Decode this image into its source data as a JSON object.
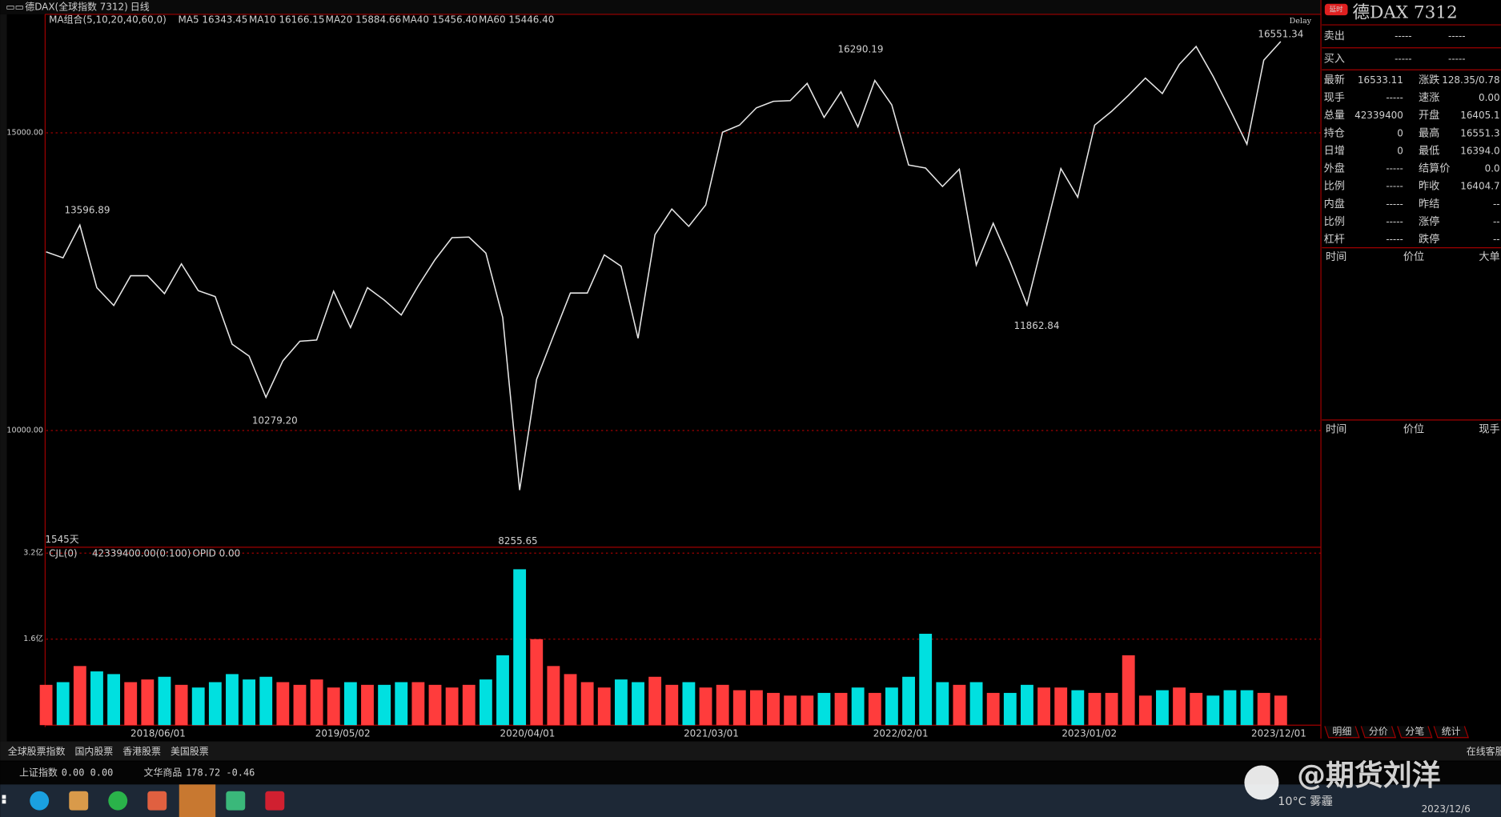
{
  "window": {
    "title": "德DAX(全球指数 7312)",
    "period": "日线"
  },
  "chart_data": {
    "type": "line",
    "ma_group": "MA组合(5,10,20,40,60,0)",
    "ma_legend": [
      {
        "text": "MA5 16343.45",
        "color": "#ffffff"
      },
      {
        "text": "MA10 16166.15",
        "color": "#ffff00"
      },
      {
        "text": "MA20 15884.66",
        "color": "#ff00ff"
      },
      {
        "text": "MA40 15456.40",
        "color": "#00ff00"
      },
      {
        "text": "MA60 15446.40",
        "color": "#808080"
      }
    ],
    "delay": "Delay",
    "days": "1545天",
    "x_labels": [
      "2018/06/01",
      "2019/05/02",
      "2020/04/01",
      "2021/03/01",
      "2022/02/01",
      "2023/01/02",
      "2023/12/01"
    ],
    "values": [
      13000,
      12900,
      13450,
      12400,
      12100,
      12600,
      12600,
      12300,
      12800,
      12350,
      12250,
      11450,
      11250,
      10560,
      11170,
      11500,
      11520,
      12340,
      11730,
      12400,
      12190,
      11940,
      12430,
      12870,
      13240,
      13250,
      12980,
      11900,
      9000,
      10860,
      11590,
      12310,
      12310,
      12950,
      12760,
      11550,
      13290,
      13720,
      13430,
      13790,
      15010,
      15130,
      15420,
      15530,
      15540,
      15830,
      15260,
      15690,
      15100,
      15880,
      15470,
      14460,
      14410,
      14100,
      14390,
      12780,
      13480,
      12830,
      12110,
      13250,
      14400,
      13920,
      15130,
      15360,
      15630,
      15920,
      15660,
      16150,
      16450,
      15950,
      15390,
      14810,
      16220,
      16533
    ],
    "color": "#e6e6e6",
    "ylim": [
      8040,
      16990
    ],
    "yticks": [
      {
        "value": 10000,
        "label": "10000.00"
      },
      {
        "value": 15000,
        "label": "15000.00"
      }
    ],
    "grid": true,
    "annotations": [
      {
        "text": "13596.89",
        "color": "#ff4040"
      },
      {
        "text": "10279.20",
        "color": "#00e0e0"
      },
      {
        "text": "8255.65",
        "color": "#00e0e0"
      },
      {
        "text": "16290.19",
        "color": "#ff4040"
      },
      {
        "text": "11862.84",
        "color": "#00e0e0"
      },
      {
        "text": "16551.34",
        "color": "#ff4040"
      }
    ],
    "volume": {
      "legend": [
        "CJL(0)",
        "42339400.00(0:100)",
        "OPID 0.00"
      ],
      "values": [
        0.75,
        0.8,
        1.1,
        1.0,
        0.95,
        0.8,
        0.85,
        0.9,
        0.75,
        0.7,
        0.8,
        0.95,
        0.85,
        0.9,
        0.8,
        0.75,
        0.85,
        0.7,
        0.8,
        0.75,
        0.75,
        0.8,
        0.8,
        0.75,
        0.7,
        0.75,
        0.85,
        1.3,
        2.9,
        1.6,
        1.1,
        0.95,
        0.8,
        0.7,
        0.85,
        0.8,
        0.9,
        0.75,
        0.8,
        0.7,
        0.75,
        0.65,
        0.65,
        0.6,
        0.55,
        0.55,
        0.6,
        0.6,
        0.7,
        0.6,
        0.7,
        0.9,
        1.7,
        0.8,
        0.75,
        0.8,
        0.6,
        0.6,
        0.75,
        0.7,
        0.7,
        0.65,
        0.6,
        0.6,
        1.3,
        0.55,
        0.65,
        0.7,
        0.6,
        0.55,
        0.65,
        0.65,
        0.6,
        0.55
      ],
      "up_color": "#ff3c3c",
      "down_color": "#00e0e0",
      "ylim": [
        0,
        3.31
      ],
      "yticks": [
        {
          "value": 1.6,
          "label": "1.6亿"
        },
        {
          "value": 3.2,
          "label": "3.2亿"
        }
      ]
    }
  },
  "right_panel": {
    "badge": "延时",
    "title": "德DAX 7312",
    "bidask": [
      [
        "卖出",
        "-----",
        "-----"
      ],
      [
        "买入",
        "-----",
        "-----"
      ]
    ],
    "quote": [
      [
        "最新",
        "16533.11",
        "涨跌",
        "128.35/0.78"
      ],
      [
        "现手",
        "-----",
        "速涨",
        "0.00"
      ],
      [
        "总量",
        "42339400",
        "开盘",
        "16405.1"
      ],
      [
        "持仓",
        "0",
        "最高",
        "16551.3"
      ],
      [
        "日增",
        "0",
        "最低",
        "16394.0"
      ],
      [
        "外盘",
        "-----",
        "结算价",
        "0.0"
      ],
      [
        "比例",
        "-----",
        "昨收",
        "16404.7"
      ],
      [
        "内盘",
        "-----",
        "昨结",
        "--"
      ],
      [
        "比例",
        "-----",
        "涨停",
        "--"
      ],
      [
        "杠杆",
        "-----",
        "跌停",
        "--"
      ]
    ],
    "headers1": [
      "时间",
      "价位",
      "大单"
    ],
    "headers2": [
      "时间",
      "价位",
      "现手"
    ],
    "tabs": [
      "明细",
      "分价",
      "分笔",
      "统计"
    ]
  },
  "market_tabs": [
    "全球股票指数",
    "国内股票",
    "香港股票",
    "美国股票"
  ],
  "online_service": "在线客服",
  "status": [
    {
      "name": "上证指数",
      "value": "0.00  0.00"
    },
    {
      "name": "文华商品",
      "value": "178.72  -0.46"
    }
  ],
  "taskbar": {
    "weather": "10°C 雾霾",
    "date": "2023/12/6"
  },
  "watermark": "@期货刘洋"
}
